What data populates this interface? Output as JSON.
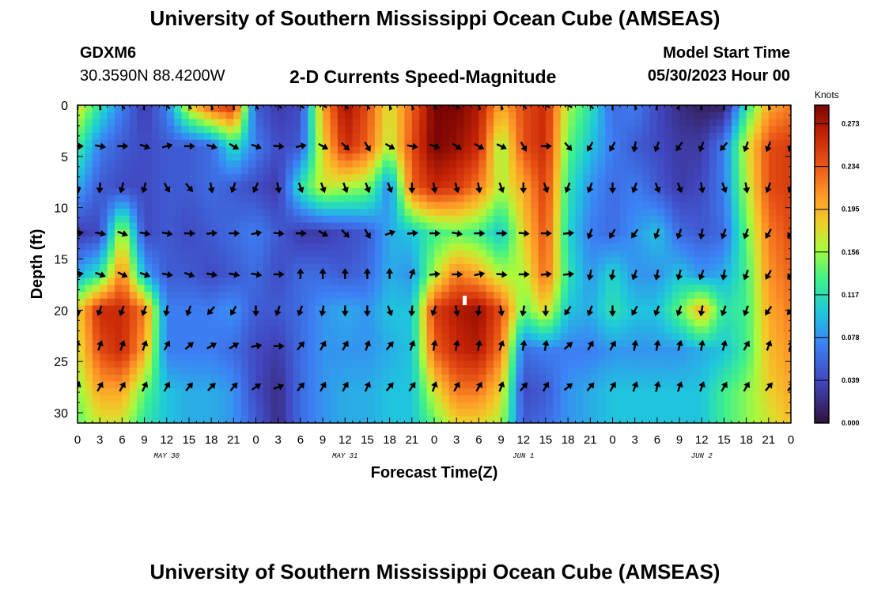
{
  "header": {
    "title": "University of Southern Mississippi Ocean Cube (AMSEAS)",
    "station_id": "GDXM6",
    "station_coords": "30.3590N  88.4200W",
    "plot_title": "2-D Currents Speed-Magnitude",
    "start_label": "Model Start Time",
    "start_value": "05/30/2023 Hour 00"
  },
  "footer": {
    "title": "University of Southern Mississippi Ocean Cube (AMSEAS)"
  },
  "chart_data": {
    "type": "heatmap",
    "title": "2-D Currents Speed-Magnitude",
    "xlabel": "Forecast Time(Z)",
    "ylabel": "Depth (ft)",
    "x_hours": [
      0,
      96
    ],
    "ylim": [
      0,
      31
    ],
    "x_tick_labels": [
      "0",
      "3",
      "6",
      "9",
      "12",
      "15",
      "18",
      "21",
      "0",
      "3",
      "6",
      "9",
      "12",
      "15",
      "18",
      "21",
      "0",
      "3",
      "6",
      "9",
      "12",
      "15",
      "18",
      "21",
      "0",
      "3",
      "6",
      "9",
      "12",
      "15",
      "18",
      "21",
      "0"
    ],
    "y_ticks": [
      0,
      5,
      10,
      15,
      20,
      25,
      30
    ],
    "y_tick_labels": [
      "0",
      "5",
      "10",
      "15",
      "20",
      "25",
      "30"
    ],
    "day_labels": [
      "MAY 30",
      "MAY 31",
      "JUN 1",
      "JUN 2"
    ],
    "day_label_hours": [
      12,
      36,
      60,
      84
    ],
    "colorbar": {
      "units": "Knots",
      "levels": [
        0.0,
        0.039,
        0.078,
        0.117,
        0.156,
        0.195,
        0.234,
        0.273
      ],
      "labels": [
        "0.000",
        "0.039",
        "0.078",
        "0.117",
        "0.156",
        "0.195",
        "0.234",
        "0.273"
      ],
      "vmax": 0.29
    },
    "columns_hours": [
      0,
      3,
      6,
      9,
      12,
      15,
      18,
      21,
      24,
      27,
      30,
      33,
      36,
      39,
      42,
      45,
      48,
      51,
      54,
      57,
      60,
      63,
      66,
      69,
      72,
      75,
      78,
      81,
      84,
      87,
      90,
      93,
      96
    ],
    "rows_depth_ft": [
      0,
      4,
      8,
      12.5,
      16.5,
      20,
      24,
      28,
      31
    ],
    "speed": [
      [
        0.18,
        0.12,
        0.07,
        0.03,
        0.07,
        0.18,
        0.24,
        0.26,
        0.05,
        0.03,
        0.04,
        0.2,
        0.28,
        0.24,
        0.17,
        0.23,
        0.29,
        0.29,
        0.27,
        0.2,
        0.24,
        0.26,
        0.16,
        0.12,
        0.06,
        0.07,
        0.04,
        0.02,
        0.01,
        0.01,
        0.12,
        0.2,
        0.22
      ],
      [
        0.13,
        0.07,
        0.05,
        0.04,
        0.05,
        0.05,
        0.06,
        0.12,
        0.07,
        0.04,
        0.05,
        0.18,
        0.26,
        0.23,
        0.16,
        0.24,
        0.29,
        0.28,
        0.26,
        0.15,
        0.24,
        0.26,
        0.14,
        0.1,
        0.07,
        0.05,
        0.04,
        0.03,
        0.03,
        0.07,
        0.17,
        0.24,
        0.25
      ],
      [
        0.09,
        0.05,
        0.04,
        0.04,
        0.05,
        0.05,
        0.06,
        0.05,
        0.04,
        0.03,
        0.12,
        0.17,
        0.16,
        0.15,
        0.07,
        0.23,
        0.26,
        0.25,
        0.22,
        0.16,
        0.2,
        0.25,
        0.12,
        0.08,
        0.06,
        0.07,
        0.05,
        0.03,
        0.04,
        0.07,
        0.16,
        0.24,
        0.25
      ],
      [
        0.03,
        0.04,
        0.17,
        0.04,
        0.05,
        0.04,
        0.05,
        0.06,
        0.07,
        0.05,
        0.03,
        0.03,
        0.04,
        0.05,
        0.09,
        0.1,
        0.13,
        0.14,
        0.13,
        0.1,
        0.18,
        0.24,
        0.11,
        0.07,
        0.06,
        0.08,
        0.1,
        0.06,
        0.05,
        0.06,
        0.14,
        0.22,
        0.24
      ],
      [
        0.09,
        0.12,
        0.22,
        0.09,
        0.05,
        0.05,
        0.04,
        0.05,
        0.06,
        0.04,
        0.06,
        0.06,
        0.05,
        0.06,
        0.09,
        0.08,
        0.16,
        0.22,
        0.2,
        0.16,
        0.16,
        0.23,
        0.12,
        0.08,
        0.11,
        0.08,
        0.08,
        0.1,
        0.08,
        0.09,
        0.13,
        0.21,
        0.23
      ],
      [
        0.18,
        0.26,
        0.26,
        0.22,
        0.07,
        0.07,
        0.07,
        0.08,
        0.05,
        0.05,
        0.06,
        0.08,
        0.09,
        0.08,
        0.1,
        0.1,
        0.25,
        0.27,
        0.28,
        0.24,
        0.14,
        0.18,
        0.1,
        0.09,
        0.12,
        0.1,
        0.1,
        0.14,
        0.2,
        0.12,
        0.13,
        0.2,
        0.22
      ],
      [
        0.17,
        0.24,
        0.26,
        0.2,
        0.07,
        0.07,
        0.07,
        0.06,
        0.04,
        0.03,
        0.06,
        0.08,
        0.08,
        0.08,
        0.09,
        0.1,
        0.23,
        0.26,
        0.27,
        0.22,
        0.06,
        0.07,
        0.07,
        0.07,
        0.08,
        0.08,
        0.08,
        0.08,
        0.09,
        0.1,
        0.13,
        0.19,
        0.21
      ],
      [
        0.15,
        0.2,
        0.2,
        0.14,
        0.1,
        0.09,
        0.09,
        0.08,
        0.04,
        0.02,
        0.06,
        0.08,
        0.09,
        0.09,
        0.1,
        0.1,
        0.17,
        0.22,
        0.22,
        0.18,
        0.04,
        0.05,
        0.08,
        0.09,
        0.1,
        0.1,
        0.1,
        0.1,
        0.1,
        0.13,
        0.15,
        0.18,
        0.2
      ],
      [
        0.14,
        0.17,
        0.17,
        0.12,
        0.1,
        0.09,
        0.09,
        0.08,
        0.05,
        0.02,
        0.06,
        0.08,
        0.09,
        0.09,
        0.1,
        0.1,
        0.14,
        0.18,
        0.18,
        0.16,
        0.05,
        0.06,
        0.08,
        0.09,
        0.1,
        0.1,
        0.1,
        0.1,
        0.1,
        0.13,
        0.15,
        0.17,
        0.19
      ]
    ],
    "vector_depths_ft": [
      0,
      4,
      8,
      12.5,
      16.5,
      20,
      23.5,
      27.5
    ],
    "vector_columns_hours": [
      0,
      3,
      6,
      9,
      12,
      15,
      18,
      21,
      24,
      27,
      30,
      33,
      36,
      39,
      42,
      45,
      48,
      51,
      54,
      57,
      60,
      63,
      66,
      69,
      72,
      75,
      78,
      81,
      84,
      87,
      90,
      93,
      96
    ],
    "vector_angles_deg": [
      [
        0,
        -10,
        -35,
        10,
        -40,
        -30,
        -20,
        -5,
        -30,
        -50,
        -50,
        -60,
        -40,
        -30,
        -20,
        -20,
        -30,
        -40,
        -20,
        -20,
        -40,
        -60,
        -60,
        -40,
        0,
        -20,
        10,
        30,
        10,
        0,
        10,
        -20,
        0
      ],
      [
        90,
        100,
        90,
        110,
        75,
        90,
        105,
        120,
        110,
        95,
        80,
        120,
        135,
        150,
        120,
        100,
        110,
        125,
        120,
        115,
        150,
        90,
        140,
        210,
        210,
        190,
        200,
        215,
        200,
        220,
        200,
        200,
        200
      ],
      [
        170,
        185,
        195,
        195,
        150,
        140,
        170,
        200,
        205,
        170,
        160,
        160,
        160,
        160,
        160,
        180,
        170,
        165,
        170,
        160,
        180,
        160,
        200,
        200,
        180,
        200,
        160,
        160,
        170,
        160,
        170,
        200,
        200
      ],
      [
        80,
        100,
        110,
        100,
        100,
        90,
        85,
        90,
        80,
        95,
        90,
        120,
        135,
        150,
        70,
        85,
        90,
        100,
        90,
        90,
        95,
        90,
        85,
        200,
        210,
        215,
        200,
        200,
        190,
        200,
        200,
        210,
        215
      ],
      [
        80,
        110,
        115,
        110,
        100,
        110,
        100,
        100,
        100,
        90,
        0,
        0,
        0,
        0,
        0,
        20,
        85,
        90,
        80,
        95,
        90,
        85,
        85,
        190,
        190,
        200,
        190,
        195,
        200,
        190,
        200,
        210,
        215
      ],
      [
        170,
        200,
        200,
        200,
        190,
        200,
        220,
        210,
        180,
        200,
        200,
        190,
        180,
        180,
        160,
        185,
        200,
        170,
        190,
        170,
        190,
        180,
        215,
        200,
        180,
        210,
        200,
        200,
        190,
        200,
        200,
        215,
        220
      ],
      [
        0,
        20,
        20,
        20,
        30,
        50,
        60,
        60,
        80,
        90,
        40,
        30,
        30,
        20,
        40,
        20,
        10,
        10,
        10,
        20,
        10,
        10,
        50,
        30,
        30,
        10,
        10,
        15,
        10,
        15,
        30,
        20,
        20
      ],
      [
        20,
        30,
        30,
        25,
        30,
        40,
        45,
        40,
        55,
        70,
        40,
        30,
        30,
        25,
        40,
        35,
        20,
        30,
        30,
        20,
        40,
        30,
        50,
        40,
        30,
        20,
        15,
        20,
        20,
        30,
        30,
        40,
        40
      ]
    ]
  }
}
